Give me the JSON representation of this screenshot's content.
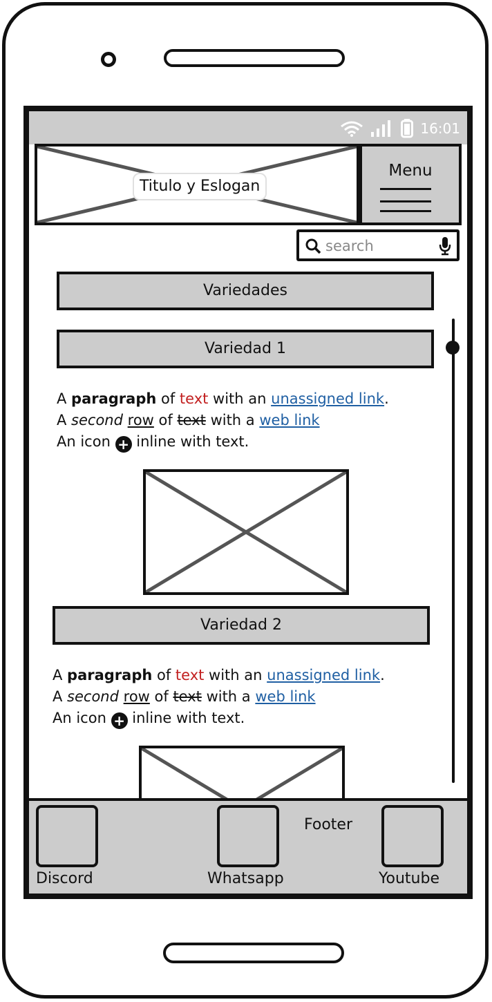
{
  "status_bar": {
    "time": "16:01"
  },
  "header": {
    "title": "Titulo y Eslogan",
    "menu_label": "Menu"
  },
  "search": {
    "placeholder": "search"
  },
  "sections": {
    "main": "Variedades",
    "variety1": "Variedad 1",
    "variety2": "Variedad 2"
  },
  "paragraph": {
    "l1_a": "A ",
    "l1_bold": "paragraph",
    "l1_b": " of ",
    "l1_red": "text",
    "l1_c": " with an ",
    "l1_link": "unassigned link",
    "l1_d": ".",
    "l2_a": "A ",
    "l2_italic": "second",
    "l2_b": " ",
    "l2_under": "row",
    "l2_c": " of ",
    "l2_strike": "text",
    "l2_d": " with a ",
    "l2_link": "web link",
    "l3_a": "An icon ",
    "l3_icon": "+",
    "l3_b": " inline with text."
  },
  "footer": {
    "label": "Footer",
    "items": [
      {
        "label": "Discord"
      },
      {
        "label": "Whatsapp"
      },
      {
        "label": "Youtube"
      }
    ]
  },
  "icons": {
    "status": [
      "wifi-icon",
      "signal-icon",
      "battery-icon"
    ],
    "search": "search-icon",
    "mic": "microphone-icon",
    "menu": "hamburger-icon",
    "inline": "plus-circle-icon"
  },
  "colors": {
    "chrome": "#cccccc",
    "link": "#1f5fa3",
    "emphasis": "#c22020"
  }
}
